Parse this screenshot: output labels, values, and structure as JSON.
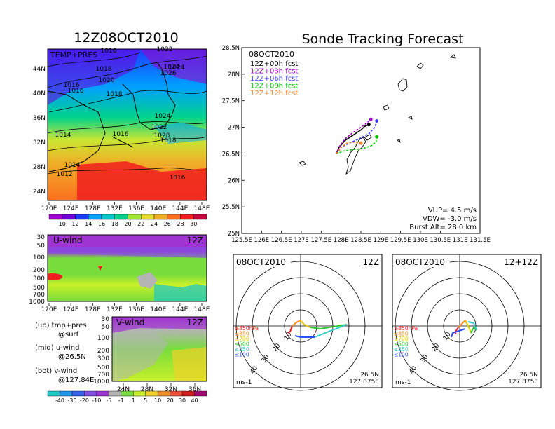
{
  "colors": {
    "temp_scale": [
      "#a000c8",
      "#6e00dc",
      "#1e3cff",
      "#00a0ff",
      "#00c8c8",
      "#00d28c",
      "#a0e632",
      "#e6dc32",
      "#f0af28",
      "#fa6e1e",
      "#f01e1e",
      "#c8003c"
    ],
    "wind_scale": [
      "#1ec8c8",
      "#1e96f0",
      "#3264f0",
      "#8250e6",
      "#a034d2",
      "#b4b4b4",
      "#78dc3c",
      "#c8f028",
      "#f0d228",
      "#f08c28",
      "#f0503c",
      "#d21e1e",
      "#a00078"
    ],
    "track_00h": "#000000",
    "track_03h": "#a000c8",
    "track_06h": "#3c3cff",
    "track_09h": "#00c800",
    "track_12h": "#f08228"
  },
  "chart_data": [
    {
      "id": "surface",
      "type": "heatmap",
      "title": "12Z08OCT2010",
      "inner_label": "TEMP+PRES",
      "x_ticks": [
        "120E",
        "124E",
        "128E",
        "132E",
        "136E",
        "140E",
        "144E",
        "148E"
      ],
      "y_ticks": [
        "24N",
        "28N",
        "32N",
        "36N",
        "40N",
        "44N"
      ],
      "colorbar_ticks": [
        "10",
        "12",
        "14",
        "16",
        "18",
        "20",
        "22",
        "24",
        "26",
        "28",
        "30"
      ],
      "isobar_labels": [
        "1016",
        "1022",
        "1018",
        "1026",
        "1024",
        "1020",
        "1018",
        "1016",
        "1016",
        "1024",
        "1022",
        "1014",
        "1016",
        "1020",
        "1018",
        "1014",
        "1012",
        "1016",
        "1024"
      ]
    },
    {
      "id": "uwind",
      "type": "heatmap",
      "inner_label": "U-wind",
      "time_label": "12Z",
      "x_ticks": [
        "120E",
        "124E",
        "128E",
        "132E",
        "136E",
        "140E",
        "144E",
        "148E"
      ],
      "y_ticks": [
        "30",
        "50",
        "100",
        "200",
        "300",
        "500",
        "700",
        "1000"
      ]
    },
    {
      "id": "vwind",
      "type": "heatmap",
      "inner_label": "V-wind",
      "time_label": "12Z",
      "x_ticks": [
        "24N",
        "28N",
        "32N",
        "36N"
      ],
      "y_ticks": [
        "30",
        "50",
        "100",
        "200",
        "300",
        "500",
        "700",
        "1000"
      ],
      "colorbar_ticks": [
        "-40",
        "-30",
        "-20",
        "-10",
        "-5",
        "-1",
        "1",
        "5",
        "10",
        "20",
        "30",
        "40"
      ]
    },
    {
      "id": "tracking",
      "type": "line",
      "title": "Sonde Tracking Forecast",
      "date": "08OCT2010",
      "x_ticks": [
        "125.5E",
        "126E",
        "126.5E",
        "127E",
        "127.5E",
        "128E",
        "128.5E",
        "129E",
        "129.5E",
        "130E",
        "130.5E",
        "131E",
        "131.5E"
      ],
      "y_ticks": [
        "25N",
        "25.5N",
        "26N",
        "26.5N",
        "27N",
        "27.5N",
        "28N",
        "28.5N"
      ],
      "xlim": [
        125.5,
        131.5
      ],
      "ylim": [
        25,
        28.5
      ],
      "series": [
        {
          "name": "12Z+00h  fcst",
          "color_key": "track_00h",
          "x": [
            127.88,
            127.95,
            128.1,
            128.3,
            128.5,
            128.6,
            128.7
          ],
          "y": [
            26.5,
            26.62,
            26.75,
            26.85,
            26.95,
            27.02,
            27.05
          ]
        },
        {
          "name": "12Z+03h  fcst",
          "color_key": "track_03h",
          "x": [
            127.88,
            127.95,
            128.1,
            128.3,
            128.5,
            128.65,
            128.75
          ],
          "y": [
            26.5,
            26.63,
            26.78,
            26.9,
            27.0,
            27.08,
            27.15
          ]
        },
        {
          "name": "12Z+06h  fcst",
          "color_key": "track_06h",
          "x": [
            127.88,
            128.0,
            128.2,
            128.45,
            128.7,
            128.85,
            128.9
          ],
          "y": [
            26.5,
            26.62,
            26.7,
            26.78,
            26.88,
            27.0,
            27.12
          ]
        },
        {
          "name": "12Z+09h  fcst",
          "color_key": "track_09h",
          "x": [
            127.88,
            128.05,
            128.3,
            128.55,
            128.75,
            128.88,
            128.9
          ],
          "y": [
            26.5,
            26.55,
            26.58,
            26.6,
            26.65,
            26.72,
            26.82
          ]
        },
        {
          "name": "12Z+12h  fcst",
          "color_key": "track_12h",
          "x": [
            127.88,
            128.0,
            128.15,
            128.3,
            128.5
          ],
          "y": [
            26.5,
            26.62,
            26.7,
            26.72,
            26.7
          ]
        }
      ],
      "params": [
        "VUP=  4.5  m/s",
        "VDW= -3.0  m/s",
        "Burst Alt=  28.0  km"
      ]
    },
    {
      "id": "hodo_left",
      "type": "line",
      "date": "08OCT2010",
      "time": "12Z",
      "ring_labels": [
        "10",
        "20",
        "30",
        "40"
      ],
      "legend": [
        "≥850hPa",
        "≤850",
        "≤700",
        "≤500",
        "≤250",
        "≤100"
      ],
      "legend_colors": [
        "#f01e1e",
        "#fa8c1e",
        "#e6c800",
        "#32c832",
        "#32c8c8",
        "#2850f0"
      ],
      "units": "ms-1",
      "location": [
        "26.5N",
        "127.875E"
      ]
    },
    {
      "id": "hodo_right",
      "type": "line",
      "date": "08OCT2010",
      "time": "12+12Z",
      "ring_labels": [
        "10",
        "20",
        "30",
        "40"
      ],
      "legend": [
        "≥850hPa",
        "≤850",
        "≤700",
        "≤500",
        "≤250",
        "≤100"
      ],
      "legend_colors": [
        "#f01e1e",
        "#fa8c1e",
        "#e6c800",
        "#32c832",
        "#32c8c8",
        "#2850f0"
      ],
      "units": "ms-1",
      "location": [
        "26.5N",
        "127.875E"
      ]
    }
  ],
  "notes": [
    {
      "label": "(up)  tmp+pres",
      "sub": "@surf"
    },
    {
      "label": "(mid)  u-wind",
      "sub": "@26.5N"
    },
    {
      "label": "(bot)  v-wind",
      "sub": "@127.84E"
    }
  ]
}
